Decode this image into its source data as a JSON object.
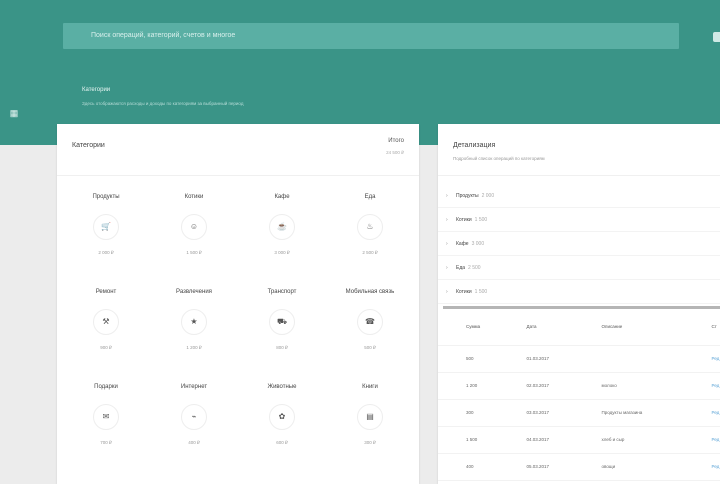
{
  "header": {
    "search_placeholder": "Поиск операций, категорий, счетов и многое",
    "title": "Категории",
    "subtitle": "Здесь отображаются расходы и доходы по категориям за выбранный период"
  },
  "categories_card": {
    "title": "Категории",
    "total_label": "Итого",
    "total_value": "24 500 ₽",
    "items": [
      {
        "name": "Продукты",
        "icon": "cart",
        "value": "2 000 ₽"
      },
      {
        "name": "Котики",
        "icon": "cat",
        "value": "1 500 ₽"
      },
      {
        "name": "Кафе",
        "icon": "cup",
        "value": "3 000 ₽"
      },
      {
        "name": "Еда",
        "icon": "food",
        "value": "2 500 ₽"
      },
      {
        "name": "Ремонт",
        "icon": "hammer",
        "value": "900 ₽"
      },
      {
        "name": "Развлечения",
        "icon": "star",
        "value": "1 200 ₽"
      },
      {
        "name": "Транспорт",
        "icon": "bus",
        "value": "800 ₽"
      },
      {
        "name": "Мобильная связь",
        "icon": "phone",
        "value": "500 ₽"
      },
      {
        "name": "Подарки",
        "icon": "gift",
        "value": "700 ₽"
      },
      {
        "name": "Интернет",
        "icon": "wifi",
        "value": "400 ₽"
      },
      {
        "name": "Животные",
        "icon": "paw",
        "value": "600 ₽"
      },
      {
        "name": "Книги",
        "icon": "book",
        "value": "300 ₽"
      }
    ]
  },
  "details_card": {
    "title": "Детализация",
    "subtitle": "Подробный список операций по категориям",
    "list": [
      {
        "name": "Продукты",
        "sum": "2 000"
      },
      {
        "name": "Котики",
        "sum": "1 500"
      },
      {
        "name": "Кафе",
        "sum": "3 000"
      },
      {
        "name": "Еда",
        "sum": "2 500"
      },
      {
        "name": "Котики",
        "sum": "1 500"
      }
    ],
    "columns": [
      "Сумма",
      "Дата",
      "Описание",
      "Ст"
    ],
    "rows": [
      {
        "sum": "500",
        "date": "01.03.2017",
        "desc": "",
        "act": "Ред"
      },
      {
        "sum": "1 200",
        "date": "02.03.2017",
        "desc": "молоко",
        "act": "Ред"
      },
      {
        "sum": "300",
        "date": "03.03.2017",
        "desc": "Продукты магазина",
        "act": "Ред"
      },
      {
        "sum": "1 500",
        "date": "04.03.2017",
        "desc": "хлеб и сыр",
        "act": "Ред"
      },
      {
        "sum": "400",
        "date": "05.03.2017",
        "desc": "овощи",
        "act": "Ред"
      }
    ]
  }
}
